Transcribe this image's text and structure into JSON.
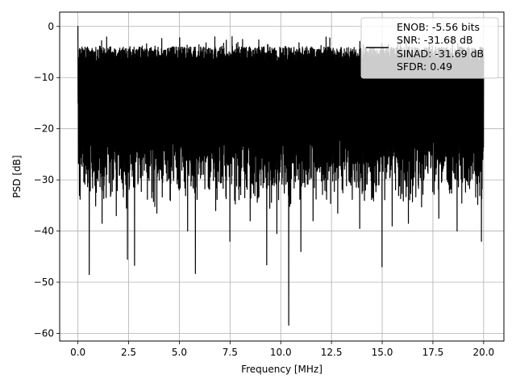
{
  "chart_data": {
    "type": "line",
    "title": "",
    "xlabel": "Frequency [MHz]",
    "ylabel": "PSD [dB]",
    "xlim": [
      -0.9,
      21.0
    ],
    "ylim": [
      -61.5,
      2.8
    ],
    "xticks": [
      0.0,
      2.5,
      5.0,
      7.5,
      10.0,
      12.5,
      15.0,
      17.5,
      20.0
    ],
    "xtick_labels": [
      "0.0",
      "2.5",
      "5.0",
      "7.5",
      "10.0",
      "12.5",
      "15.0",
      "17.5",
      "20.0"
    ],
    "yticks": [
      0,
      -10,
      -20,
      -30,
      -40,
      -50,
      -60
    ],
    "ytick_labels": [
      "0",
      "−10",
      "−20",
      "−30",
      "−40",
      "−50",
      "−60"
    ],
    "grid": true,
    "legend_position": "top-right",
    "legend": {
      "lines": [
        "ENOB: -5.56 bits",
        "SNR: -31.68 dB",
        "SINAD: -31.69 dB",
        "SFDR: 0.49"
      ]
    },
    "series": [
      {
        "color": "#000000",
        "x_range": [
          0.0,
          20.0
        ],
        "envelope_top": [
          -4,
          -2
        ],
        "noise_floor_typical": [
          -22,
          -33
        ],
        "peaks": [
          {
            "x": 0.0,
            "y": 0.1
          }
        ],
        "deep_nulls": [
          {
            "x": 0.55,
            "y": -48.5
          },
          {
            "x": 1.2,
            "y": -38.5
          },
          {
            "x": 1.9,
            "y": -37.0
          },
          {
            "x": 2.45,
            "y": -45.5
          },
          {
            "x": 2.8,
            "y": -46.7
          },
          {
            "x": 3.9,
            "y": -36.5
          },
          {
            "x": 5.4,
            "y": -40.0
          },
          {
            "x": 5.8,
            "y": -48.3
          },
          {
            "x": 6.8,
            "y": -36.0
          },
          {
            "x": 7.5,
            "y": -42.0
          },
          {
            "x": 8.5,
            "y": -38.0
          },
          {
            "x": 9.3,
            "y": -46.6
          },
          {
            "x": 9.8,
            "y": -40.5
          },
          {
            "x": 10.4,
            "y": -58.4
          },
          {
            "x": 11.0,
            "y": -44.0
          },
          {
            "x": 11.6,
            "y": -38.0
          },
          {
            "x": 12.8,
            "y": -36.5
          },
          {
            "x": 13.9,
            "y": -39.5
          },
          {
            "x": 15.0,
            "y": -47.0
          },
          {
            "x": 15.5,
            "y": -39.0
          },
          {
            "x": 16.3,
            "y": -38.5
          },
          {
            "x": 17.8,
            "y": -37.5
          },
          {
            "x": 18.7,
            "y": -40.0
          },
          {
            "x": 19.9,
            "y": -42.0
          }
        ]
      }
    ]
  }
}
